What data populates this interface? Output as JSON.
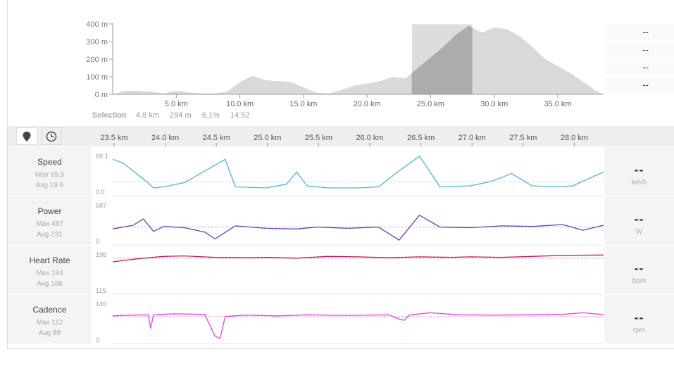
{
  "elevation": {
    "y_ticks": [
      "400 m",
      "300 m",
      "200 m",
      "100 m",
      "0 m"
    ],
    "x_ticks": [
      "5.0 km",
      "10.0 km",
      "15.0 km",
      "20.0 km",
      "25.0 km",
      "30.0 km",
      "35.0 km"
    ],
    "side_values": [
      "--",
      "--",
      "--",
      "--"
    ]
  },
  "selection": {
    "label": "Selection",
    "distance": "4.8 km",
    "elevation": "294 m",
    "grade": "6.1%",
    "other": "14.52"
  },
  "detail_x_ticks": [
    "23.5 km",
    "24.0 km",
    "24.5 km",
    "25.0 km",
    "25.5 km",
    "26.0 km",
    "26.5 km",
    "27.0 km",
    "27.5 km",
    "28.0 km"
  ],
  "rows": [
    {
      "name": "Speed",
      "max": "Max 65.9",
      "avg": "Avg 19.6",
      "top": "69.1",
      "bottom": "0.0",
      "value": "--",
      "unit": "km/h",
      "color": "#4fb3d9"
    },
    {
      "name": "Power",
      "max": "Max 487",
      "avg": "Avg 231",
      "top": "587",
      "bottom": "0",
      "value": "--",
      "unit": "W",
      "color": "#6b3fb0"
    },
    {
      "name": "Heart Rate",
      "max": "Max 194",
      "avg": "Avg 186",
      "top": "195",
      "bottom": "115",
      "value": "--",
      "unit": "bpm",
      "color": "#c2185b"
    },
    {
      "name": "Cadence",
      "max": "Max 112",
      "avg": "Avg 89",
      "top": "140",
      "bottom": "0",
      "value": "--",
      "unit": "rpm",
      "color": "#e040e0"
    }
  ],
  "icons": {
    "pin": "map-pin-icon",
    "clock": "clock-icon"
  },
  "chart_data": [
    {
      "type": "area",
      "xlabel": "",
      "ylabel": "",
      "x_unit": "km",
      "y_unit": "m",
      "xlim": [
        0,
        38.6
      ],
      "ylim": [
        0,
        400
      ],
      "x": [
        0,
        1,
        2,
        3,
        4,
        5,
        6,
        7,
        8,
        9,
        10,
        11,
        12,
        13,
        14,
        15,
        16,
        17,
        18,
        19,
        20,
        21,
        22,
        23,
        24,
        25,
        26,
        27,
        28,
        29,
        30,
        31,
        32,
        33,
        34,
        35,
        36,
        37,
        38,
        38.6
      ],
      "y": [
        0,
        20,
        20,
        15,
        5,
        20,
        10,
        5,
        5,
        15,
        70,
        105,
        80,
        75,
        70,
        40,
        10,
        5,
        25,
        50,
        60,
        75,
        100,
        90,
        150,
        210,
        270,
        340,
        390,
        350,
        380,
        370,
        330,
        270,
        200,
        160,
        120,
        70,
        20,
        0
      ],
      "selection": [
        23.5,
        28.3
      ]
    },
    {
      "type": "line",
      "name": "Speed",
      "ylim": [
        0,
        69.1
      ],
      "avg": 19.6,
      "xlim": [
        23.5,
        28.3
      ],
      "x": [
        23.5,
        23.6,
        23.8,
        23.9,
        24.0,
        24.2,
        24.4,
        24.6,
        24.7,
        25.0,
        25.2,
        25.3,
        25.4,
        25.6,
        25.9,
        26.1,
        26.3,
        26.5,
        26.7,
        27.0,
        27.2,
        27.4,
        27.6,
        27.8,
        28.0,
        28.3
      ],
      "y": [
        62,
        55,
        25,
        8,
        10,
        18,
        40,
        62,
        10,
        8,
        15,
        38,
        12,
        8,
        8,
        10,
        40,
        68,
        10,
        12,
        20,
        35,
        12,
        10,
        12,
        38
      ]
    },
    {
      "type": "line",
      "name": "Power",
      "ylim": [
        0,
        587
      ],
      "avg": 231,
      "xlim": [
        23.5,
        28.3
      ],
      "x": [
        23.5,
        23.7,
        23.8,
        23.9,
        24.0,
        24.2,
        24.4,
        24.5,
        24.7,
        25.0,
        25.3,
        25.5,
        25.8,
        26.1,
        26.3,
        26.5,
        26.7,
        27.0,
        27.3,
        27.6,
        27.9,
        28.1,
        28.3
      ],
      "y": [
        200,
        260,
        360,
        160,
        240,
        220,
        150,
        40,
        250,
        210,
        200,
        230,
        210,
        230,
        20,
        420,
        230,
        220,
        250,
        240,
        270,
        180,
        260
      ]
    },
    {
      "type": "line",
      "name": "Heart Rate",
      "ylim": [
        115,
        195
      ],
      "avg": 186,
      "xlim": [
        23.5,
        28.3
      ],
      "x": [
        23.5,
        23.6,
        23.8,
        24.0,
        24.2,
        24.5,
        24.8,
        25.0,
        25.3,
        25.6,
        25.9,
        26.2,
        26.5,
        26.8,
        27.0,
        27.3,
        27.6,
        27.9,
        28.3
      ],
      "y": [
        178,
        181,
        186,
        190,
        191,
        188,
        187,
        188,
        186,
        190,
        189,
        187,
        189,
        188,
        189,
        188,
        190,
        192,
        193
      ]
    },
    {
      "type": "line",
      "name": "Cadence",
      "ylim": [
        0,
        140
      ],
      "avg": 89,
      "xlim": [
        23.5,
        28.3
      ],
      "x": [
        23.5,
        23.7,
        23.85,
        23.87,
        23.9,
        24.1,
        24.4,
        24.5,
        24.55,
        24.6,
        24.8,
        25.1,
        25.4,
        25.8,
        26.2,
        26.3,
        26.35,
        26.4,
        26.6,
        26.9,
        27.2,
        27.6,
        27.9,
        28.1,
        28.3
      ],
      "y": [
        92,
        95,
        96,
        45,
        96,
        100,
        98,
        15,
        5,
        90,
        95,
        92,
        96,
        94,
        96,
        80,
        75,
        95,
        104,
        96,
        95,
        96,
        98,
        104,
        97
      ]
    }
  ]
}
